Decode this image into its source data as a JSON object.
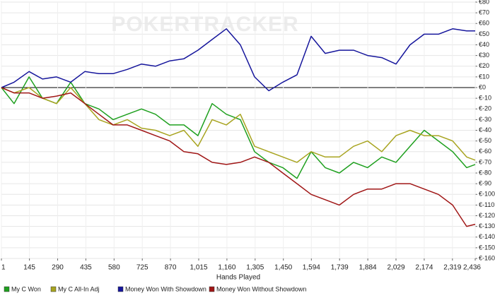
{
  "chart_data": {
    "type": "line",
    "watermark": "POKERTRACKER",
    "x_label": "Hands Played",
    "x": [
      1,
      66,
      143,
      212,
      284,
      357,
      430,
      502,
      575,
      648,
      721,
      793,
      866,
      939,
      1011,
      1084,
      1157,
      1229,
      1302,
      1375,
      1447,
      1520,
      1593,
      1665,
      1738,
      1811,
      1883,
      1956,
      2029,
      2101,
      2174,
      2247,
      2320,
      2392,
      2436
    ],
    "series": [
      {
        "name": "My C Won",
        "color": "#1fa01f",
        "values": [
          0,
          -15,
          10,
          -10,
          -15,
          5,
          -15,
          -20,
          -30,
          -25,
          -20,
          -25,
          -35,
          -35,
          -45,
          -15,
          -25,
          -30,
          -60,
          -70,
          -75,
          -85,
          -60,
          -75,
          -80,
          -70,
          -75,
          -65,
          -70,
          -55,
          -40,
          -50,
          -60,
          -75,
          -72
        ]
      },
      {
        "name": "My C All-In Adj",
        "color": "#a8a420",
        "values": [
          0,
          -5,
          0,
          -10,
          -15,
          0,
          -15,
          -30,
          -35,
          -30,
          -38,
          -40,
          -45,
          -40,
          -55,
          -30,
          -35,
          -25,
          -55,
          -60,
          -65,
          -70,
          -60,
          -65,
          -65,
          -55,
          -50,
          -60,
          -45,
          -40,
          -45,
          -45,
          -50,
          -65,
          -68
        ]
      },
      {
        "name": "Money Won With Showdown",
        "color": "#16169c",
        "values": [
          0,
          5,
          15,
          8,
          10,
          5,
          15,
          13,
          13,
          17,
          22,
          20,
          25,
          27,
          35,
          45,
          55,
          40,
          10,
          -3,
          5,
          12,
          48,
          32,
          35,
          35,
          30,
          28,
          22,
          40,
          50,
          50,
          55,
          53,
          53
        ]
      },
      {
        "name": "Money Won Without Showdown",
        "color": "#a01616",
        "values": [
          0,
          -5,
          -5,
          -10,
          -8,
          -5,
          -15,
          -25,
          -35,
          -35,
          -40,
          -45,
          -50,
          -60,
          -62,
          -70,
          -72,
          -70,
          -65,
          -70,
          -80,
          -90,
          -100,
          -105,
          -110,
          -100,
          -95,
          -95,
          -90,
          -90,
          -95,
          -100,
          -110,
          -130,
          -128
        ]
      }
    ],
    "xlim": [
      1,
      2436
    ],
    "xticks": [
      1,
      145,
      290,
      435,
      580,
      725,
      870,
      {
        "value": 1015,
        "label": "1,015"
      },
      {
        "value": 1160,
        "label": "1,160"
      },
      {
        "value": 1305,
        "label": "1,305"
      },
      {
        "value": 1450,
        "label": "1,450"
      },
      {
        "value": 1594,
        "label": "1,594"
      },
      {
        "value": 1739,
        "label": "1,739"
      },
      {
        "value": 1884,
        "label": "1,884"
      },
      {
        "value": 2029,
        "label": "2,029"
      },
      {
        "value": 2174,
        "label": "2,174"
      },
      {
        "value": 2319,
        "label": "2,319"
      },
      {
        "value": 2436,
        "label": "2,436"
      }
    ],
    "ylim": [
      -160,
      80
    ],
    "yticks": [
      {
        "value": 80,
        "label": "€80"
      },
      {
        "value": 70,
        "label": "€70"
      },
      {
        "value": 60,
        "label": "€60"
      },
      {
        "value": 50,
        "label": "€50"
      },
      {
        "value": 40,
        "label": "€40"
      },
      {
        "value": 30,
        "label": "€30"
      },
      {
        "value": 20,
        "label": "€20"
      },
      {
        "value": 10,
        "label": "€10"
      },
      {
        "value": 0,
        "label": "€0"
      },
      {
        "value": -10,
        "label": "€-10"
      },
      {
        "value": -20,
        "label": "€-20"
      },
      {
        "value": -30,
        "label": "€-30"
      },
      {
        "value": -40,
        "label": "€-40"
      },
      {
        "value": -50,
        "label": "€-50"
      },
      {
        "value": -60,
        "label": "€-60"
      },
      {
        "value": -70,
        "label": "€-70"
      },
      {
        "value": -80,
        "label": "€-80"
      },
      {
        "value": -90,
        "label": "€-90"
      },
      {
        "value": -100,
        "label": "€-100"
      },
      {
        "value": -110,
        "label": "€-110"
      },
      {
        "value": -120,
        "label": "€-120"
      },
      {
        "value": -130,
        "label": "€-130"
      },
      {
        "value": -140,
        "label": "€-140"
      },
      {
        "value": -150,
        "label": "€-150"
      },
      {
        "value": -160,
        "label": "€-160"
      }
    ],
    "grid": true
  }
}
